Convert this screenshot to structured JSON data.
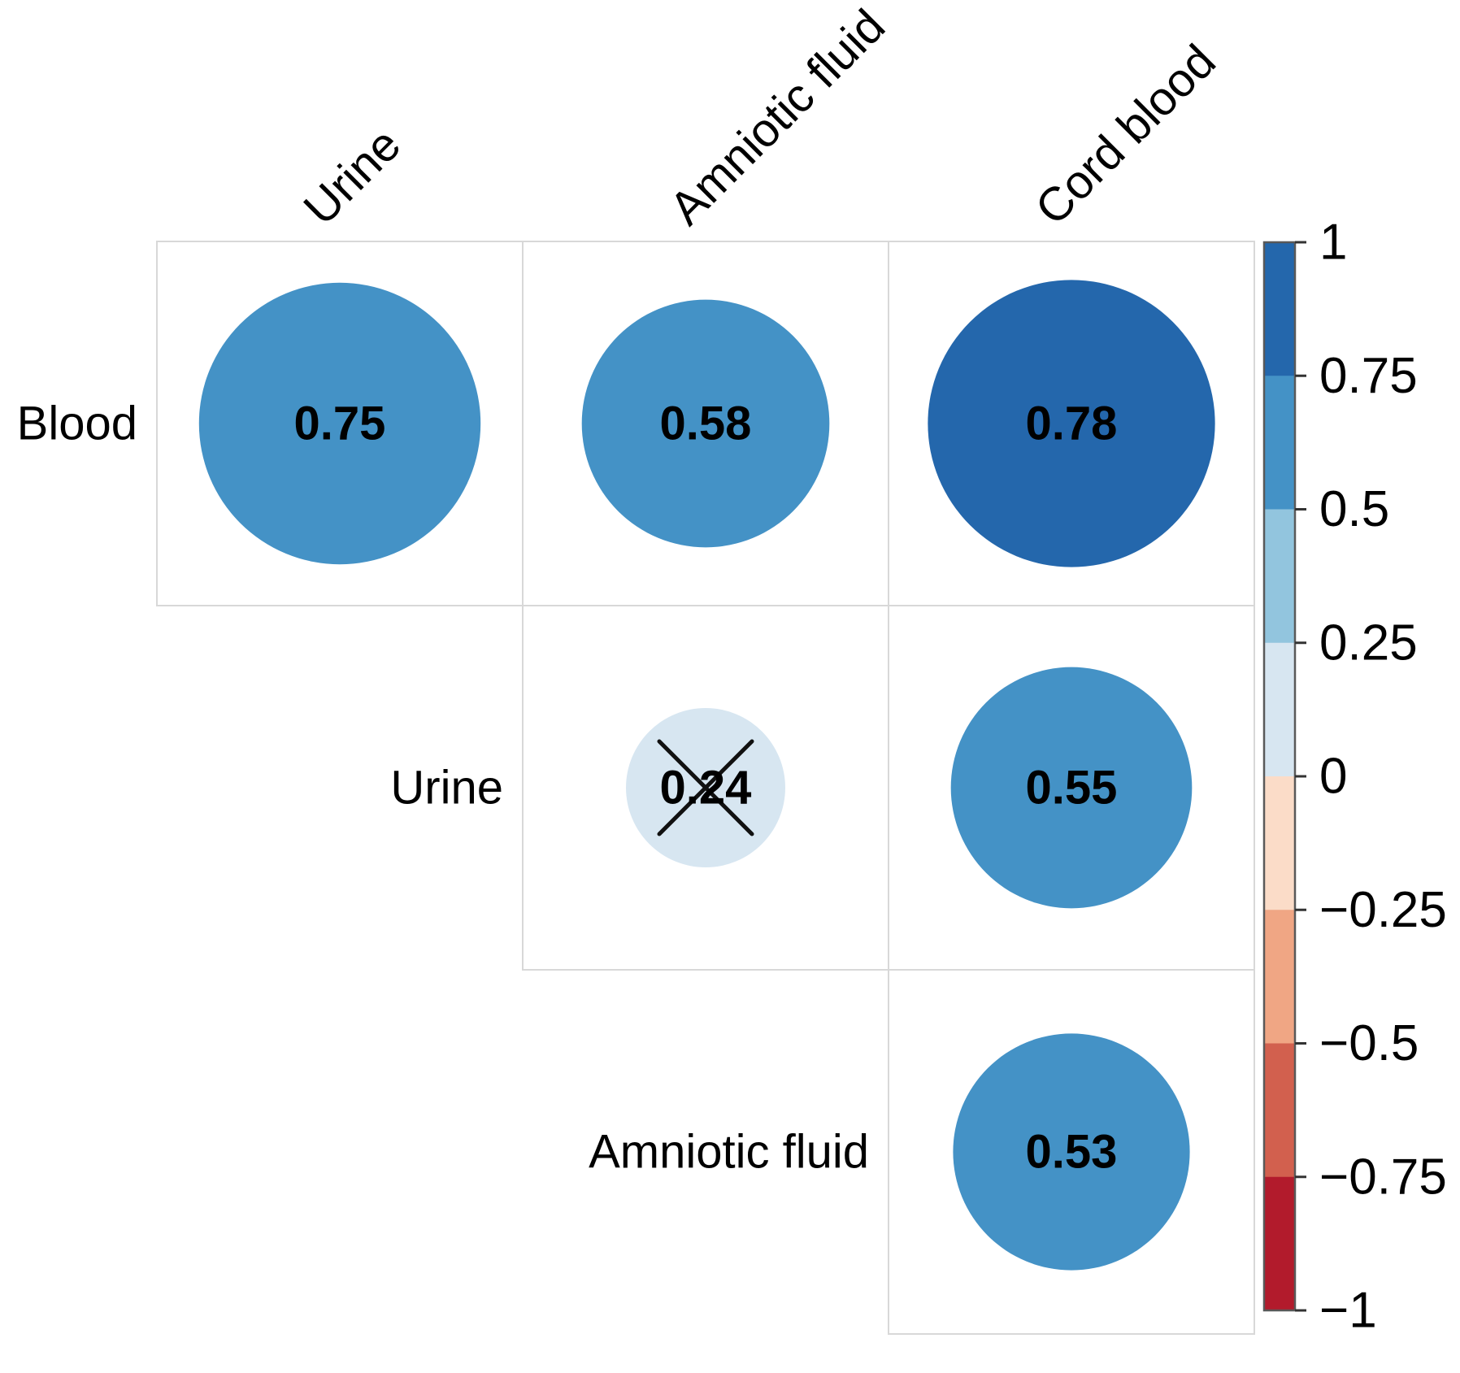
{
  "chart_data": {
    "type": "correlation-matrix",
    "title": "",
    "row_labels": [
      "Blood",
      "Urine",
      "Amniotic fluid"
    ],
    "col_labels": [
      "Urine",
      "Amniotic fluid",
      "Cord blood"
    ],
    "cells": [
      {
        "row_index": 0,
        "col_index": 0,
        "row": "Blood",
        "col": "Urine",
        "value": 0.75,
        "label": "0.75",
        "color": "#4492c6",
        "crossed": false
      },
      {
        "row_index": 0,
        "col_index": 1,
        "row": "Blood",
        "col": "Amniotic fluid",
        "value": 0.58,
        "label": "0.58",
        "color": "#4492c6",
        "crossed": false
      },
      {
        "row_index": 0,
        "col_index": 2,
        "row": "Blood",
        "col": "Cord blood",
        "value": 0.78,
        "label": "0.78",
        "color": "#2467ac",
        "crossed": false
      },
      {
        "row_index": 1,
        "col_index": 1,
        "row": "Urine",
        "col": "Amniotic fluid",
        "value": 0.24,
        "label": "0.24",
        "color": "#d7e6f1",
        "crossed": true
      },
      {
        "row_index": 1,
        "col_index": 2,
        "row": "Urine",
        "col": "Cord blood",
        "value": 0.55,
        "label": "0.55",
        "color": "#4492c6",
        "crossed": false
      },
      {
        "row_index": 2,
        "col_index": 2,
        "row": "Amniotic fluid",
        "col": "Cord blood",
        "value": 0.53,
        "label": "0.53",
        "color": "#4492c6",
        "crossed": false
      }
    ],
    "colorbar": {
      "tick_labels": [
        "1",
        "0.75",
        "0.5",
        "0.25",
        "0",
        "−0.25",
        "−0.5",
        "−0.75",
        "−1"
      ],
      "tick_values": [
        1,
        0.75,
        0.5,
        0.25,
        0,
        -0.25,
        -0.5,
        -0.75,
        -1
      ],
      "segments_top_to_bottom": [
        "#2467ac",
        "#4492c6",
        "#92c5de",
        "#d7e6f1",
        "#fbdcc8",
        "#f0a684",
        "#d2604e",
        "#b21b2c"
      ],
      "range": [
        -1,
        1
      ],
      "legend_position": "right"
    },
    "significance_marker": "cross-on-insignificant-cell",
    "text_color": "#000000",
    "grid_color": "#d8d8d8",
    "cross_color": "#111111",
    "colorbar_border_color": "#595959"
  }
}
